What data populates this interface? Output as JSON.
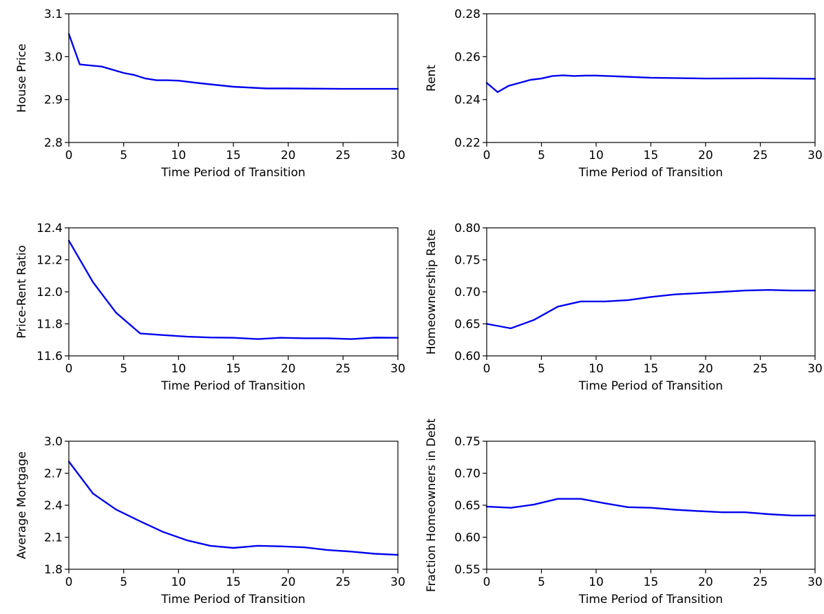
{
  "figure": {
    "line_color": "#0000ee"
  },
  "chart_data": [
    {
      "type": "line",
      "xlabel": "Time Period of Transition",
      "ylabel": "House Price",
      "xlim": [
        0,
        30
      ],
      "ylim": [
        2.8,
        3.1
      ],
      "xticks": [
        "0",
        "5",
        "10",
        "15",
        "20",
        "25",
        "30"
      ],
      "yticks": [
        "2.8",
        "2.9",
        "3.0",
        "3.1"
      ],
      "grid": false,
      "legend": "none",
      "series": [
        {
          "x": [
            0,
            1,
            3,
            5,
            6,
            7,
            8,
            9,
            10,
            12,
            15,
            18,
            20,
            25,
            30
          ],
          "y": [
            3.053,
            2.982,
            2.977,
            2.962,
            2.957,
            2.949,
            2.945,
            2.945,
            2.944,
            2.938,
            2.93,
            2.926,
            2.926,
            2.925,
            2.925
          ]
        }
      ]
    },
    {
      "type": "line",
      "xlabel": "Time Period of Transition",
      "ylabel": "Rent",
      "xlim": [
        0,
        30
      ],
      "ylim": [
        0.22,
        0.28
      ],
      "xticks": [
        "0",
        "5",
        "10",
        "15",
        "20",
        "25",
        "30"
      ],
      "yticks": [
        "0.22",
        "0.24",
        "0.26",
        "0.28"
      ],
      "grid": false,
      "legend": "none",
      "series": [
        {
          "x": [
            0,
            1,
            2,
            3,
            4,
            5,
            6,
            7,
            8,
            9,
            10,
            12,
            15,
            20,
            25,
            30
          ],
          "y": [
            0.2478,
            0.2435,
            0.2464,
            0.2478,
            0.2492,
            0.2498,
            0.251,
            0.2513,
            0.251,
            0.2512,
            0.2512,
            0.2508,
            0.2502,
            0.2498,
            0.2499,
            0.2497
          ]
        }
      ]
    },
    {
      "type": "line",
      "xlabel": "Time Period of Transition",
      "ylabel": "Price-Rent Ratio",
      "xlim": [
        0,
        30
      ],
      "ylim": [
        11.6,
        12.4
      ],
      "xticks": [
        "0",
        "5",
        "10",
        "15",
        "20",
        "25",
        "30"
      ],
      "yticks": [
        "11.6",
        "11.8",
        "12.0",
        "12.2",
        "12.4"
      ],
      "grid": false,
      "legend": "none",
      "series": [
        {
          "x": [
            0,
            2.2,
            4.3,
            6.5,
            8.6,
            10.8,
            12.9,
            15,
            17.2,
            19.3,
            21.5,
            23.6,
            25.8,
            27.9,
            30
          ],
          "y": [
            12.32,
            12.06,
            11.87,
            11.74,
            11.73,
            11.72,
            11.715,
            11.713,
            11.705,
            11.713,
            11.71,
            11.71,
            11.705,
            11.714,
            11.713
          ]
        }
      ]
    },
    {
      "type": "line",
      "xlabel": "Time Period of Transition",
      "ylabel": "Homeownership Rate",
      "xlim": [
        0,
        30
      ],
      "ylim": [
        0.6,
        0.8
      ],
      "xticks": [
        "0",
        "5",
        "10",
        "15",
        "20",
        "25",
        "30"
      ],
      "yticks": [
        "0.60",
        "0.65",
        "0.70",
        "0.75",
        "0.80"
      ],
      "grid": false,
      "legend": "none",
      "series": [
        {
          "x": [
            0,
            2.2,
            4.3,
            6.5,
            8.6,
            10.8,
            12.9,
            15,
            17.2,
            19.3,
            21.5,
            23.6,
            25.8,
            27.9,
            30
          ],
          "y": [
            0.65,
            0.643,
            0.656,
            0.677,
            0.685,
            0.685,
            0.687,
            0.692,
            0.696,
            0.698,
            0.7,
            0.702,
            0.703,
            0.702,
            0.702
          ]
        }
      ]
    },
    {
      "type": "line",
      "xlabel": "Time Period of Transition",
      "ylabel": "Average Mortgage",
      "xlim": [
        0,
        30
      ],
      "ylim": [
        1.8,
        3.0
      ],
      "xticks": [
        "0",
        "5",
        "10",
        "15",
        "20",
        "25",
        "30"
      ],
      "yticks": [
        "1.8",
        "2.1",
        "2.4",
        "2.7",
        "3.0"
      ],
      "grid": false,
      "legend": "none",
      "series": [
        {
          "x": [
            0,
            2.2,
            4.3,
            6.5,
            8.6,
            10.8,
            12.9,
            15,
            17.2,
            19.3,
            21.5,
            23.6,
            25.8,
            27.9,
            30
          ],
          "y": [
            2.81,
            2.51,
            2.36,
            2.25,
            2.15,
            2.07,
            2.02,
            2.0,
            2.02,
            2.015,
            2.005,
            1.98,
            1.965,
            1.945,
            1.935
          ]
        }
      ]
    },
    {
      "type": "line",
      "xlabel": "Time Period of Transition",
      "ylabel": "Fraction Homeowners in Debt",
      "xlim": [
        0,
        30
      ],
      "ylim": [
        0.55,
        0.75
      ],
      "xticks": [
        "0",
        "5",
        "10",
        "15",
        "20",
        "25",
        "30"
      ],
      "yticks": [
        "0.55",
        "0.60",
        "0.65",
        "0.70",
        "0.75"
      ],
      "grid": false,
      "legend": "none",
      "series": [
        {
          "x": [
            0,
            2.2,
            4.3,
            6.5,
            8.6,
            10.8,
            12.9,
            15,
            17.2,
            19.3,
            21.5,
            23.6,
            25.8,
            27.9,
            30
          ],
          "y": [
            0.648,
            0.646,
            0.651,
            0.66,
            0.66,
            0.653,
            0.647,
            0.646,
            0.643,
            0.641,
            0.639,
            0.639,
            0.636,
            0.634,
            0.634
          ]
        }
      ]
    }
  ]
}
